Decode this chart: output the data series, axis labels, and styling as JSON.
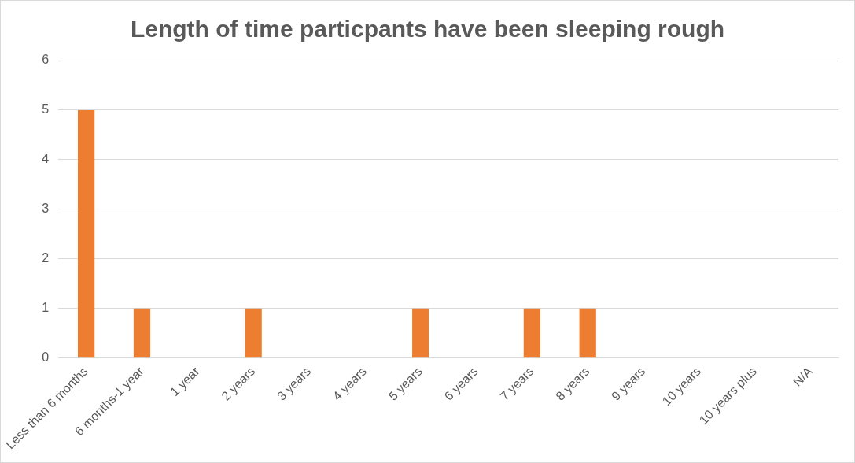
{
  "chart_data": {
    "type": "bar",
    "title": "Length of time particpants have been sleeping rough",
    "categories": [
      "Less than 6 months",
      "6 months-1 year",
      "1 year",
      "2 years",
      "3 years",
      "4 years",
      "5 years",
      "6 years",
      "7 years",
      "8 years",
      "9 years",
      "10 years",
      "10 years plus",
      "N/A"
    ],
    "values": [
      5,
      1,
      0,
      1,
      0,
      0,
      1,
      0,
      1,
      1,
      0,
      0,
      0,
      0
    ],
    "color": "#ed7d31",
    "ylim": [
      0,
      6
    ],
    "yticks": [
      0,
      1,
      2,
      3,
      4,
      5,
      6
    ],
    "grid": "y",
    "legend": false
  }
}
